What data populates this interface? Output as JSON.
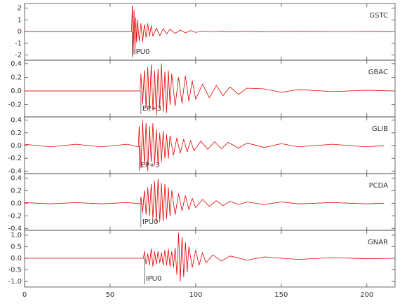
{
  "chart_data": [
    {
      "type": "line",
      "xlim": [
        0,
        216.5
      ],
      "ylim": [
        -2.45,
        2.4
      ],
      "yticks": [
        2,
        1,
        0,
        -1,
        -2
      ],
      "x": [
        0,
        30,
        62.5,
        63,
        63.5,
        64,
        64.5,
        65,
        65.5,
        66,
        67,
        68,
        69,
        70,
        71,
        72,
        73,
        74,
        75,
        77,
        79,
        81,
        83,
        85,
        88,
        91,
        94,
        97,
        100,
        105,
        110,
        115,
        120,
        130,
        140,
        160,
        180,
        200,
        215
      ],
      "series": [
        {
          "name": "GSTC",
          "color": "#e00000",
          "values": [
            0,
            0,
            0,
            2.2,
            -2.0,
            1.8,
            -1.5,
            1.2,
            -0.9,
            1.0,
            -0.8,
            0.7,
            -0.9,
            0.6,
            -0.5,
            0.7,
            -0.4,
            0.5,
            -0.4,
            0.3,
            -0.35,
            0.25,
            -0.2,
            0.2,
            -0.15,
            0.12,
            -0.1,
            0.08,
            -0.07,
            0.05,
            -0.04,
            0.03,
            -0.03,
            0.02,
            -0.02,
            0.01,
            -0.01,
            0.01,
            0
          ]
        }
      ],
      "pick": {
        "label": "IPU0",
        "x": 63
      }
    },
    {
      "type": "line",
      "xlim": [
        0,
        216.5
      ],
      "ylim": [
        -0.38,
        0.45
      ],
      "yticks": [
        0.4,
        0.2,
        {
          "value": 0,
          "label": "0.0"
        },
        -0.2
      ],
      "x": [
        0,
        30,
        67.5,
        68,
        69,
        70,
        71,
        72,
        73,
        74,
        75,
        76,
        77,
        78,
        79,
        80,
        81,
        82,
        83,
        84,
        85,
        86,
        88,
        90,
        92,
        94,
        96,
        98,
        100,
        104,
        108,
        112,
        116,
        120,
        125,
        130,
        140,
        150,
        160,
        180,
        200,
        215
      ],
      "series": [
        {
          "name": "GBAC",
          "color": "#e00000",
          "values": [
            0,
            0,
            0,
            0.25,
            -0.2,
            0.3,
            -0.25,
            0.35,
            -0.3,
            0.38,
            -0.28,
            0.3,
            -0.35,
            0.32,
            -0.25,
            0.4,
            -0.3,
            0.28,
            -0.32,
            0.3,
            -0.2,
            0.25,
            -0.22,
            0.2,
            -0.18,
            0.22,
            -0.15,
            0.15,
            -0.12,
            0.1,
            -0.1,
            0.08,
            -0.07,
            0.06,
            -0.05,
            0.04,
            0.03,
            -0.02,
            0.02,
            -0.01,
            0.01,
            0
          ]
        }
      ],
      "pick": {
        "label": "EP+3",
        "x": 68
      }
    },
    {
      "type": "line",
      "xlim": [
        0,
        216.5
      ],
      "ylim": [
        -0.44,
        0.45
      ],
      "yticks": [
        0.4,
        0.2,
        {
          "value": 0,
          "label": "0.0"
        },
        -0.2,
        -0.4
      ],
      "x": [
        0,
        15,
        30,
        45,
        60,
        66.5,
        67,
        68,
        69,
        70,
        71,
        72,
        73,
        74,
        75,
        76,
        77,
        78,
        79,
        80,
        81,
        82,
        83,
        84,
        85,
        87,
        89,
        91,
        93,
        95,
        97,
        99,
        103,
        107,
        111,
        115,
        119,
        125,
        130,
        140,
        150,
        160,
        180,
        200,
        210
      ],
      "series": [
        {
          "name": "GLIB",
          "color": "#e00000",
          "values": [
            0.02,
            -0.02,
            0.02,
            -0.02,
            0.02,
            -0.02,
            0.3,
            -0.35,
            0.4,
            -0.3,
            0.35,
            -0.4,
            0.3,
            -0.25,
            0.35,
            -0.3,
            0.25,
            -0.3,
            0.2,
            -0.25,
            0.22,
            -0.2,
            0.18,
            -0.2,
            0.15,
            -0.15,
            0.12,
            -0.12,
            0.1,
            -0.1,
            0.08,
            -0.08,
            0.07,
            -0.06,
            0.06,
            -0.05,
            0.05,
            -0.04,
            0.04,
            -0.03,
            0.03,
            -0.02,
            0.02,
            -0.02,
            0
          ]
        }
      ],
      "pick": {
        "label": "EP+3",
        "x": 67
      }
    },
    {
      "type": "line",
      "xlim": [
        0,
        216.5
      ],
      "ylim": [
        -0.43,
        0.47
      ],
      "yticks": [
        0.4,
        0.2,
        {
          "value": 0,
          "label": "0.0"
        },
        -0.2,
        -0.4
      ],
      "x": [
        0,
        15,
        30,
        45,
        60,
        67.5,
        68,
        69,
        70,
        71,
        72,
        73,
        74,
        75,
        76,
        77,
        78,
        79,
        80,
        81,
        82,
        83,
        84,
        85,
        86,
        88,
        90,
        92,
        94,
        96,
        98,
        100,
        104,
        108,
        112,
        116,
        120,
        125,
        130,
        140,
        150,
        160,
        180,
        200,
        210
      ],
      "series": [
        {
          "name": "PCDA",
          "color": "#e00000",
          "values": [
            0.01,
            -0.01,
            0.01,
            -0.01,
            0.01,
            -0.01,
            0.1,
            -0.15,
            0.2,
            -0.18,
            0.25,
            -0.2,
            0.3,
            -0.25,
            0.35,
            -0.3,
            0.38,
            -0.3,
            0.32,
            -0.28,
            0.3,
            -0.25,
            0.25,
            -0.2,
            0.2,
            -0.18,
            0.15,
            -0.12,
            0.12,
            -0.1,
            0.08,
            -0.07,
            0.06,
            -0.05,
            0.04,
            -0.04,
            0.03,
            -0.02,
            0.02,
            -0.02,
            0.02,
            -0.01,
            0.01,
            -0.01,
            0
          ]
        }
      ],
      "pick": {
        "label": "IPU0",
        "x": 68
      }
    },
    {
      "type": "line",
      "xlim": [
        0,
        216.5
      ],
      "ylim": [
        -1.24,
        1.21
      ],
      "yticks": [
        {
          "value": 1,
          "label": "1.0"
        },
        0.5,
        {
          "value": 0,
          "label": "0.0"
        },
        -0.5,
        {
          "value": -1,
          "label": "-1.0"
        }
      ],
      "xticks": [
        0,
        50,
        100,
        150,
        200
      ],
      "x": [
        0,
        30,
        69.5,
        70,
        71,
        72,
        73,
        74,
        75,
        76,
        77,
        78,
        79,
        80,
        81,
        82,
        83,
        84,
        85,
        86,
        87,
        88,
        89,
        90,
        91,
        92,
        93,
        94,
        95,
        96,
        98,
        100,
        102,
        104,
        106,
        110,
        115,
        120,
        130,
        140,
        160,
        180,
        200,
        215
      ],
      "series": [
        {
          "name": "GNAR",
          "color": "#e00000",
          "values": [
            0,
            0,
            0,
            0.3,
            -0.25,
            0.2,
            -0.3,
            0.4,
            -0.35,
            0.3,
            -0.25,
            0.3,
            -0.2,
            0.25,
            -0.3,
            0.35,
            -0.3,
            0.4,
            -0.35,
            0.3,
            -0.4,
            0.45,
            -0.7,
            1.1,
            -1.0,
            0.9,
            -0.8,
            0.7,
            -0.6,
            0.5,
            -0.4,
            0.35,
            -0.3,
            0.25,
            -0.2,
            0.15,
            -0.12,
            0.1,
            -0.08,
            0.06,
            -0.05,
            0.03,
            -0.02,
            0
          ]
        }
      ],
      "pick": {
        "label": "IPU0",
        "x": 70
      }
    }
  ]
}
